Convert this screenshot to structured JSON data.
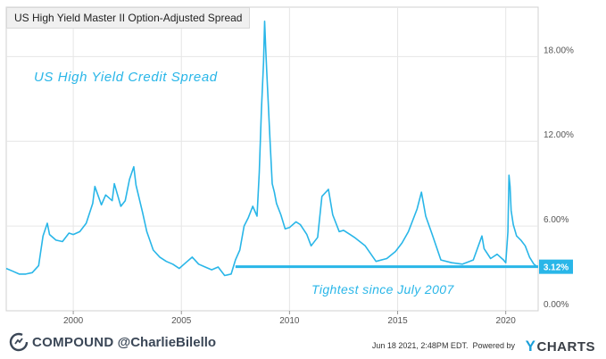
{
  "legend": {
    "label": "US High Yield Master II Option-Adjusted Spread"
  },
  "annotations": {
    "title": "US High Yield Credit Spread",
    "bottom_note": "Tightest since July 2007",
    "current_value": "3.12%"
  },
  "footer": {
    "brand": "COMPOUND",
    "handle": "@CharlieBilello",
    "timestamp": "Jun 18 2021, 2:48PM EDT.",
    "powered_by": "Powered by",
    "provider": "CHARTS",
    "provider_mark": "Y"
  },
  "colors": {
    "series": "#29b6e8",
    "grid": "#e6e6e6",
    "axis_text": "#555555",
    "value_badge": "#29b6e8"
  },
  "chart_data": {
    "type": "line",
    "title": "",
    "xlabel": "",
    "ylabel": "",
    "x_ticks": [
      "2000",
      "2005",
      "2010",
      "2015",
      "2020"
    ],
    "y_ticks": [
      "0.00%",
      "6.00%",
      "12.00%",
      "18.00%"
    ],
    "xlim": [
      1996.9,
      2021.5
    ],
    "ylim": [
      0,
      21.5
    ],
    "grid": true,
    "series": [
      {
        "name": "US High Yield Master II Option-Adjusted Spread",
        "x": [
          1996.9,
          1997.2,
          1997.5,
          1997.8,
          1998.1,
          1998.4,
          1998.6,
          1998.8,
          1998.9,
          1999.2,
          1999.5,
          1999.8,
          2000.0,
          2000.3,
          2000.6,
          2000.9,
          2001.0,
          2001.3,
          2001.5,
          2001.8,
          2001.9,
          2002.2,
          2002.4,
          2002.6,
          2002.8,
          2002.9,
          2003.2,
          2003.4,
          2003.7,
          2004.0,
          2004.3,
          2004.6,
          2004.9,
          2005.2,
          2005.5,
          2005.8,
          2006.1,
          2006.4,
          2006.7,
          2007.0,
          2007.3,
          2007.5,
          2007.7,
          2007.9,
          2008.1,
          2008.3,
          2008.5,
          2008.6,
          2008.7,
          2008.8,
          2008.85,
          2008.9,
          2008.95,
          2009.0,
          2009.1,
          2009.2,
          2009.3,
          2009.4,
          2009.6,
          2009.8,
          2010.0,
          2010.3,
          2010.5,
          2010.8,
          2011.0,
          2011.3,
          2011.5,
          2011.8,
          2012.0,
          2012.3,
          2012.5,
          2012.8,
          2013.0,
          2013.5,
          2014.0,
          2014.5,
          2014.9,
          2015.2,
          2015.5,
          2015.9,
          2016.1,
          2016.3,
          2016.6,
          2017.0,
          2017.5,
          2018.0,
          2018.5,
          2018.9,
          2019.0,
          2019.3,
          2019.6,
          2019.9,
          2020.0,
          2020.1,
          2020.15,
          2020.2,
          2020.25,
          2020.35,
          2020.5,
          2020.7,
          2020.9,
          2021.1,
          2021.3,
          2021.46
        ],
        "y": [
          3.0,
          2.8,
          2.6,
          2.6,
          2.7,
          3.2,
          5.3,
          6.2,
          5.4,
          5.0,
          4.9,
          5.5,
          5.4,
          5.6,
          6.2,
          7.6,
          8.8,
          7.5,
          8.2,
          7.8,
          9.0,
          7.4,
          7.8,
          9.3,
          10.2,
          8.9,
          7.0,
          5.6,
          4.3,
          3.8,
          3.5,
          3.3,
          3.0,
          3.4,
          3.8,
          3.3,
          3.1,
          2.9,
          3.1,
          2.5,
          2.6,
          3.6,
          4.3,
          6.0,
          6.6,
          7.4,
          6.7,
          9.8,
          14.2,
          17.6,
          20.5,
          18.6,
          16.9,
          15.2,
          12.0,
          9.0,
          8.4,
          7.6,
          6.8,
          5.8,
          5.9,
          6.3,
          6.1,
          5.4,
          4.6,
          5.2,
          8.1,
          8.6,
          6.8,
          5.6,
          5.7,
          5.4,
          5.2,
          4.6,
          3.5,
          3.7,
          4.2,
          4.8,
          5.6,
          7.2,
          8.4,
          6.7,
          5.4,
          3.6,
          3.4,
          3.3,
          3.6,
          5.3,
          4.4,
          3.7,
          4.0,
          3.6,
          3.4,
          5.6,
          9.6,
          8.8,
          7.1,
          6.1,
          5.3,
          5.0,
          4.6,
          3.8,
          3.3,
          3.12
        ]
      }
    ],
    "reference_line": {
      "y": 3.12,
      "from_x": 2007.5
    }
  }
}
